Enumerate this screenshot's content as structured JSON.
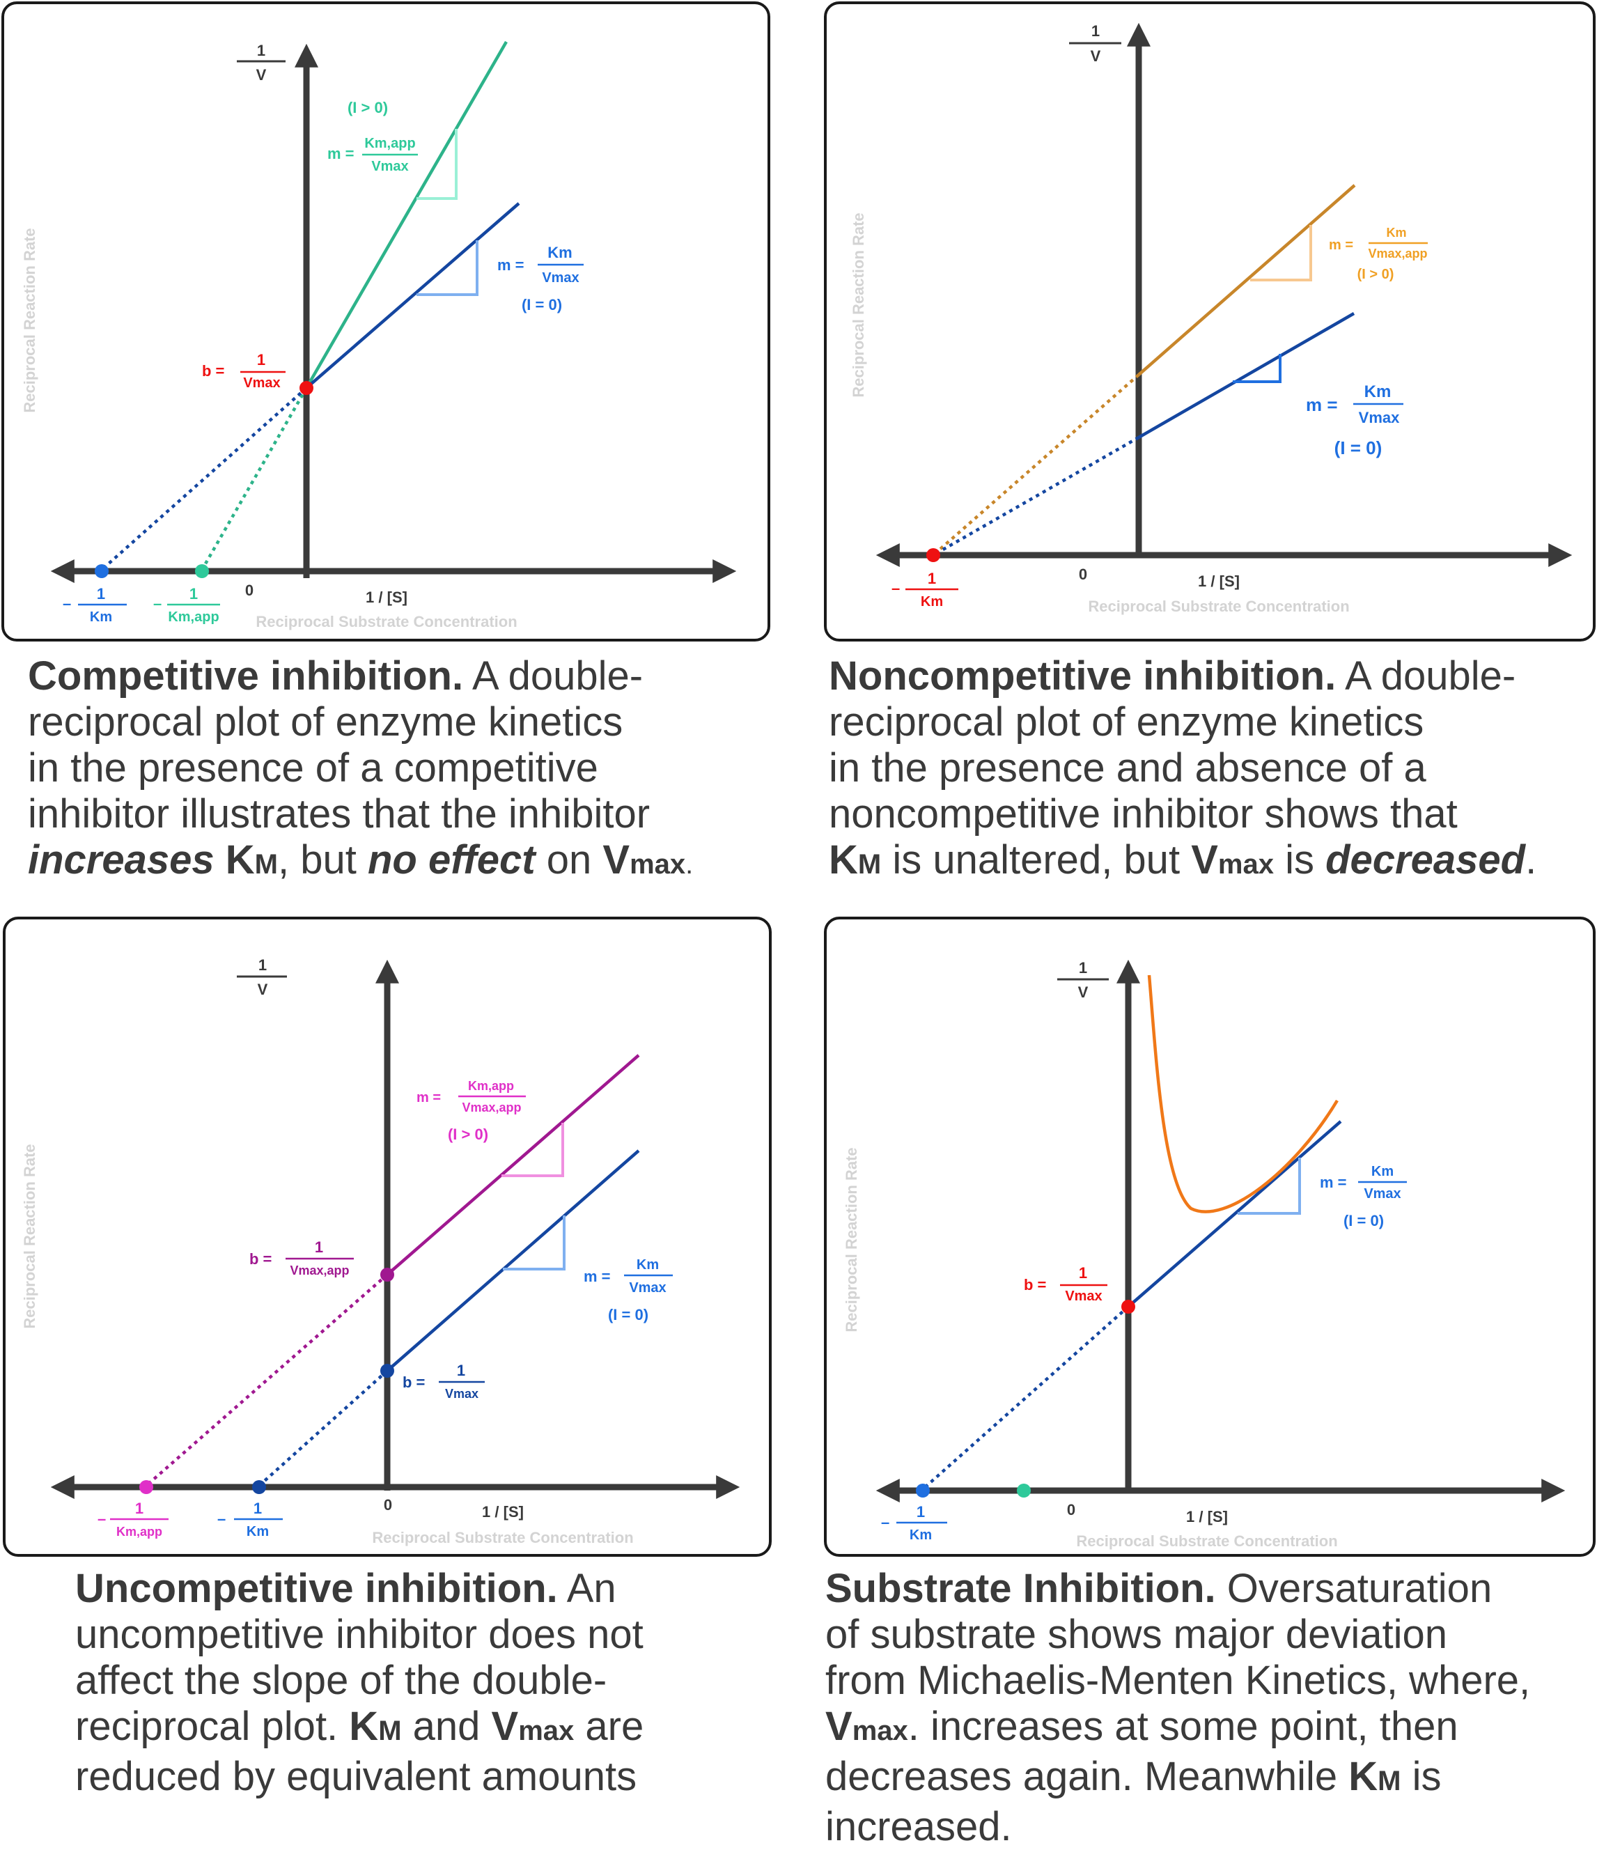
{
  "colors": {
    "axis": "#3a3a3a",
    "frame": "#1a1a1a",
    "axis_label": "#d3d3d3",
    "blue": "#1f6fe0",
    "dark_blue": "#1446a0",
    "light_blue": "#7fb0f0",
    "teal": "#2ec99a",
    "teal_line": "#2db38a",
    "red": "#ee1111",
    "orange": "#f0a024",
    "orange_line": "#c8862a",
    "magenta": "#e030c8",
    "purple": "#a01890",
    "pink": "#f090e0",
    "curve": "#f07818"
  },
  "common": {
    "y_label": "Reciprocal Reaction Rate",
    "x_label": "Reciprocal Substrate Concentration",
    "x_axis": "1 / [S]",
    "y_axis_num": "1",
    "y_axis_den": "V",
    "zero": "0",
    "minus": "–",
    "one": "1",
    "m_eq": "m =",
    "b_eq": "b ="
  },
  "panels": {
    "competitive": {
      "slope_inh_num": "Km,app",
      "slope_inh_den": "Vmax",
      "inh_label": "(I > 0)",
      "slope_num": "Km",
      "slope_den": "Vmax",
      "no_inh_label": "(I = 0)",
      "b_den": "Vmax",
      "xint1_den": "Km",
      "xint2_den": "Km,app"
    },
    "noncompetitive": {
      "slope_inh_num": "Km",
      "slope_inh_den": "Vmax,app",
      "inh_label": "(I > 0)",
      "slope_num": "Km",
      "slope_den": "Vmax",
      "no_inh_label": "(I = 0)",
      "xint_den": "Km"
    },
    "uncompetitive": {
      "slope_inh_num": "Km,app",
      "slope_inh_den": "Vmax,app",
      "inh_label": "(I > 0)",
      "slope_num": "Km",
      "slope_den": "Vmax",
      "no_inh_label": "(I = 0)",
      "b_inh_den": "Vmax,app",
      "b_den": "Vmax",
      "xint_inh_den": "Km,app",
      "xint_den": "Km"
    },
    "substrate": {
      "slope_num": "Km",
      "slope_den": "Vmax",
      "no_inh_label": "(I = 0)",
      "b_den": "Vmax",
      "xint_den": "Km"
    }
  },
  "captions": {
    "competitive": {
      "title": "Competitive inhibition.",
      "t1": "A double-",
      "l2": "reciprocal plot of enzyme kinetics",
      "l3": "in the presence of a competitive",
      "l4": "inhibitor illustrates that the inhibitor",
      "l5a": "increases",
      "l5b": "K",
      "l5c": "M",
      "l5d": ", but",
      "l5e": "no effect",
      "l5f": "on",
      "l5g": "V",
      "l5h": "max",
      "l5i": "."
    },
    "noncompetitive": {
      "title": "Noncompetitive inhibition.",
      "t1": "A double-",
      "l2": "reciprocal plot of enzyme kinetics",
      "l3": "in the presence and absence of a",
      "l4": "noncompetitive inhibitor shows that",
      "l5a": "K",
      "l5b": "M",
      "l5c": "is unaltered, but",
      "l5d": "V",
      "l5e": "max",
      "l5f": "is",
      "l5g": "decreased",
      "l5h": "."
    },
    "uncompetitive": {
      "title": "Uncompetitive inhibition.",
      "t1": "An",
      "l2": "uncompetitive inhibitor does not",
      "l3": "affect the slope of the double-",
      "l4a": "reciprocal plot.",
      "l4b": "K",
      "l4c": "M",
      "l4d": "and",
      "l4e": "V",
      "l4f": "max",
      "l4g": "are",
      "l5": "reduced by equivalent amounts"
    },
    "substrate": {
      "title": "Substrate Inhibition.",
      "t1": "Oversaturation",
      "l2": "of substrate shows major deviation",
      "l3": "from Michaelis-Menten Kinetics, where,",
      "l4a": "V",
      "l4b": "max",
      "l4c": ". increases at some point, then",
      "l5a": "decreases again. Meanwhile",
      "l5b": "K",
      "l5c": "M",
      "l5d": "is",
      "l6": "increased."
    }
  }
}
